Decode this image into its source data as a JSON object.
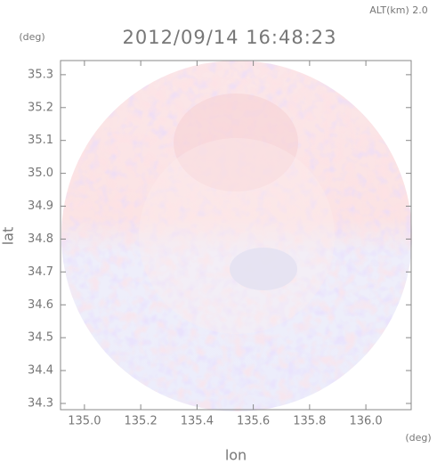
{
  "chart_data": {
    "type": "image",
    "title": "2012/09/14 16:48:23",
    "altitude_label": "ALT(km) 2.0",
    "y_unit": "(deg)",
    "x_unit": "(deg)",
    "ylabel": "lat",
    "xlabel": "lon",
    "xlim": [
      134.915,
      136.161
    ],
    "ylim": [
      34.281,
      35.343
    ],
    "xticks": [
      {
        "value": 135,
        "label": "135.0"
      },
      135.2,
      135.4,
      135.6,
      135.8,
      {
        "value": 136,
        "label": "136.0"
      }
    ],
    "yticks": [
      34.3,
      34.4,
      34.5,
      34.6,
      34.7,
      34.8,
      34.9,
      {
        "value": 35,
        "label": "35.0"
      },
      35.1,
      35.2,
      35.3
    ]
  }
}
